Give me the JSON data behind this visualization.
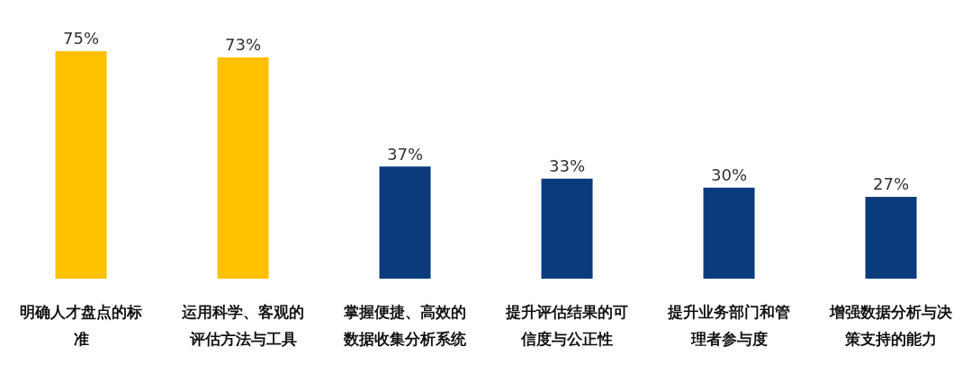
{
  "chart_data": {
    "type": "bar",
    "categories": [
      "明确人才盘点的标准",
      "运用科学、客观的评估方法与工具",
      "掌握便捷、高效的数据收集分析系统",
      "提升评估结果的可信度与公正性",
      "提升业务部门和管理者参与度",
      "增强数据分析与决策支持的能力"
    ],
    "values": [
      75,
      73,
      37,
      33,
      30,
      27
    ],
    "value_labels": [
      "75%",
      "73%",
      "37%",
      "33%",
      "30%",
      "27%"
    ],
    "colors": [
      "#ffc000",
      "#ffc000",
      "#0b3b7d",
      "#0b3b7d",
      "#0b3b7d",
      "#0b3b7d"
    ],
    "grid": false
  }
}
